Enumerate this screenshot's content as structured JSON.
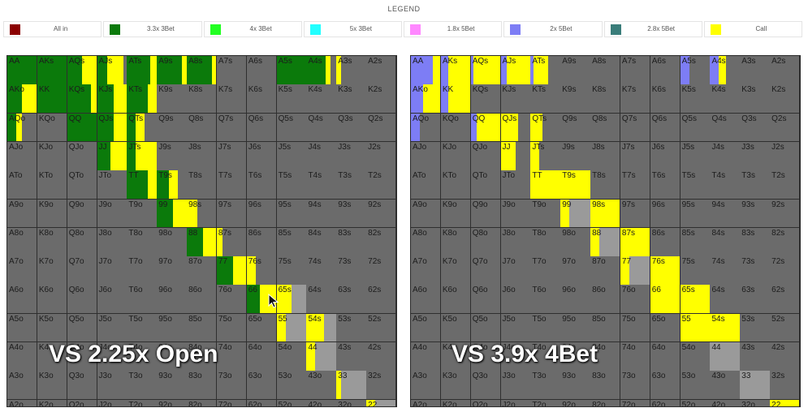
{
  "legend": {
    "title": "LEGEND",
    "items": [
      {
        "label": "All in",
        "color": "#8b0000"
      },
      {
        "label": "3.3x 3Bet",
        "color": "#0b7a0b"
      },
      {
        "label": "4x 3Bet",
        "color": "#22ff22"
      },
      {
        "label": "5x 3Bet",
        "color": "#22ffff"
      },
      {
        "label": "1.8x 5Bet",
        "color": "#ff88ff"
      },
      {
        "label": "2x 5Bet",
        "color": "#7d7df5"
      },
      {
        "label": "2.8x 5Bet",
        "color": "#3a7d7a"
      },
      {
        "label": "Call",
        "color": "#ffff00"
      }
    ]
  },
  "colors": {
    "fold": "#6b6b6b",
    "light_fold": "#9a9a9a",
    "threebet": "#0b7a0b",
    "call": "#ffff00",
    "fivebet": "#7d7df5"
  },
  "ranks": [
    "A",
    "K",
    "Q",
    "J",
    "T",
    "9",
    "8",
    "7",
    "6",
    "5",
    "4",
    "3",
    "2"
  ],
  "left": {
    "caption": "VS 2.25x Open",
    "strategy": {
      "AA": [
        [
          "threebet",
          1
        ]
      ],
      "AKs": [
        [
          "threebet",
          1
        ]
      ],
      "AQs": [
        [
          "threebet",
          0.5
        ],
        [
          "call",
          0.5
        ]
      ],
      "AJs": [
        [
          "threebet",
          0.35
        ],
        [
          "call",
          0.55
        ],
        [
          "fold",
          0.1
        ]
      ],
      "ATs": [
        [
          "threebet",
          0.8
        ],
        [
          "call",
          0.2
        ]
      ],
      "A9s": [
        [
          "threebet",
          0.85
        ],
        [
          "call",
          0.15
        ]
      ],
      "A8s": [
        [
          "threebet",
          0.85
        ],
        [
          "call",
          0.15
        ]
      ],
      "A5s": [
        [
          "threebet",
          1
        ]
      ],
      "A4s": [
        [
          "threebet",
          0.65
        ],
        [
          "call",
          0.15
        ],
        [
          "fold",
          0.2
        ]
      ],
      "A3s": [
        [
          "call",
          0.15
        ],
        [
          "fold",
          0.85
        ]
      ],
      "AKo": [
        [
          "threebet",
          0.5
        ],
        [
          "call",
          0.5
        ]
      ],
      "KK": [
        [
          "threebet",
          1
        ]
      ],
      "KQs": [
        [
          "threebet",
          0.8
        ],
        [
          "call",
          0.2
        ]
      ],
      "KJs": [
        [
          "threebet",
          0.55
        ],
        [
          "call",
          0.45
        ]
      ],
      "KTs": [
        [
          "threebet",
          0.7
        ],
        [
          "call",
          0.3
        ]
      ],
      "AQo": [
        [
          "threebet",
          0.3
        ],
        [
          "call",
          0.2
        ],
        [
          "fold",
          0.5
        ]
      ],
      "QQ": [
        [
          "threebet",
          1
        ]
      ],
      "QJs": [
        [
          "threebet",
          0.55
        ],
        [
          "call",
          0.45
        ]
      ],
      "QTs": [
        [
          "threebet",
          0.3
        ],
        [
          "call",
          0.3
        ],
        [
          "fold",
          0.4
        ]
      ],
      "JJ": [
        [
          "threebet",
          0.45
        ],
        [
          "call",
          0.55
        ]
      ],
      "JTs": [
        [
          "threebet",
          0.3
        ],
        [
          "call",
          0.7
        ]
      ],
      "TT": [
        [
          "threebet",
          0.7
        ],
        [
          "call",
          0.3
        ]
      ],
      "T9s": [
        [
          "threebet",
          0.4
        ],
        [
          "call",
          0.3
        ],
        [
          "fold",
          0.3
        ]
      ],
      "99": [
        [
          "threebet",
          0.55
        ],
        [
          "call",
          0.45
        ]
      ],
      "98s": [
        [
          "call",
          0.35
        ],
        [
          "fold",
          0.65
        ]
      ],
      "88": [
        [
          "threebet",
          0.55
        ],
        [
          "call",
          0.45
        ]
      ],
      "87s": [
        [
          "call",
          0.2
        ],
        [
          "fold",
          0.8
        ]
      ],
      "77": [
        [
          "threebet",
          0.55
        ],
        [
          "call",
          0.45
        ]
      ],
      "76s": [
        [
          "call",
          0.3
        ],
        [
          "fold",
          0.7
        ]
      ],
      "66": [
        [
          "threebet",
          0.45
        ],
        [
          "call",
          0.55
        ]
      ],
      "65s": [
        [
          "call",
          0.5
        ],
        [
          "light_fold",
          0.5
        ]
      ],
      "55": [
        [
          "call",
          0.3
        ],
        [
          "light_fold",
          0.7
        ]
      ],
      "54s": [
        [
          "call",
          0.6
        ],
        [
          "light_fold",
          0.4
        ]
      ],
      "44": [
        [
          "call",
          0.3
        ],
        [
          "light_fold",
          0.7
        ]
      ],
      "33": [
        [
          "call",
          0.15
        ],
        [
          "light_fold",
          0.85
        ]
      ],
      "22": [
        [
          "call",
          0.3
        ],
        [
          "light_fold",
          0.7
        ]
      ]
    }
  },
  "right": {
    "caption": "VS 3.9x 4Bet",
    "strategy": {
      "AA": [
        [
          "fivebet",
          0.75
        ],
        [
          "call",
          0.25
        ]
      ],
      "AKs": [
        [
          "fivebet",
          0.25
        ],
        [
          "call",
          0.75
        ]
      ],
      "AQs": [
        [
          "fivebet",
          0.1
        ],
        [
          "call",
          0.9
        ]
      ],
      "AJs": [
        [
          "fivebet",
          0.2
        ],
        [
          "call",
          0.8
        ]
      ],
      "ATs": [
        [
          "fivebet",
          0.1
        ],
        [
          "call",
          0.5
        ],
        [
          "fold",
          0.4
        ]
      ],
      "A5s": [
        [
          "fivebet",
          0.3
        ],
        [
          "fold",
          0.7
        ]
      ],
      "A4s": [
        [
          "fivebet",
          0.3
        ],
        [
          "call",
          0.25
        ],
        [
          "fold",
          0.45
        ]
      ],
      "AKo": [
        [
          "fivebet",
          0.4
        ],
        [
          "call",
          0.6
        ]
      ],
      "KK": [
        [
          "fivebet",
          0.25
        ],
        [
          "call",
          0.75
        ]
      ],
      "AQo": [
        [
          "fivebet",
          0.3
        ],
        [
          "fold",
          0.7
        ]
      ],
      "QQ": [
        [
          "fivebet",
          0.2
        ],
        [
          "call",
          0.8
        ]
      ],
      "QJs": [
        [
          "call",
          0.6
        ],
        [
          "fold",
          0.4
        ]
      ],
      "QTs": [
        [
          "call",
          0.4
        ],
        [
          "fold",
          0.6
        ]
      ],
      "JJ": [
        [
          "call",
          0.5
        ],
        [
          "fold",
          0.5
        ]
      ],
      "JTs": [
        [
          "call",
          0.3
        ],
        [
          "fold",
          0.7
        ]
      ],
      "TT": [
        [
          "call",
          1
        ]
      ],
      "T9s": [
        [
          "call",
          1
        ]
      ],
      "99": [
        [
          "call",
          0.3
        ],
        [
          "light_fold",
          0.7
        ]
      ],
      "98s": [
        [
          "call",
          1
        ]
      ],
      "88": [
        [
          "call",
          0.3
        ],
        [
          "light_fold",
          0.7
        ]
      ],
      "87s": [
        [
          "call",
          1
        ]
      ],
      "77": [
        [
          "call",
          0.3
        ],
        [
          "light_fold",
          0.7
        ]
      ],
      "76s": [
        [
          "call",
          1
        ]
      ],
      "66": [
        [
          "call",
          1
        ]
      ],
      "65s": [
        [
          "call",
          1
        ]
      ],
      "55": [
        [
          "call",
          1
        ]
      ],
      "54s": [
        [
          "call",
          1
        ]
      ],
      "44": [
        [
          "light_fold",
          1
        ]
      ],
      "33": [
        [
          "light_fold",
          1
        ]
      ],
      "22": [
        [
          "call",
          1
        ]
      ]
    }
  }
}
